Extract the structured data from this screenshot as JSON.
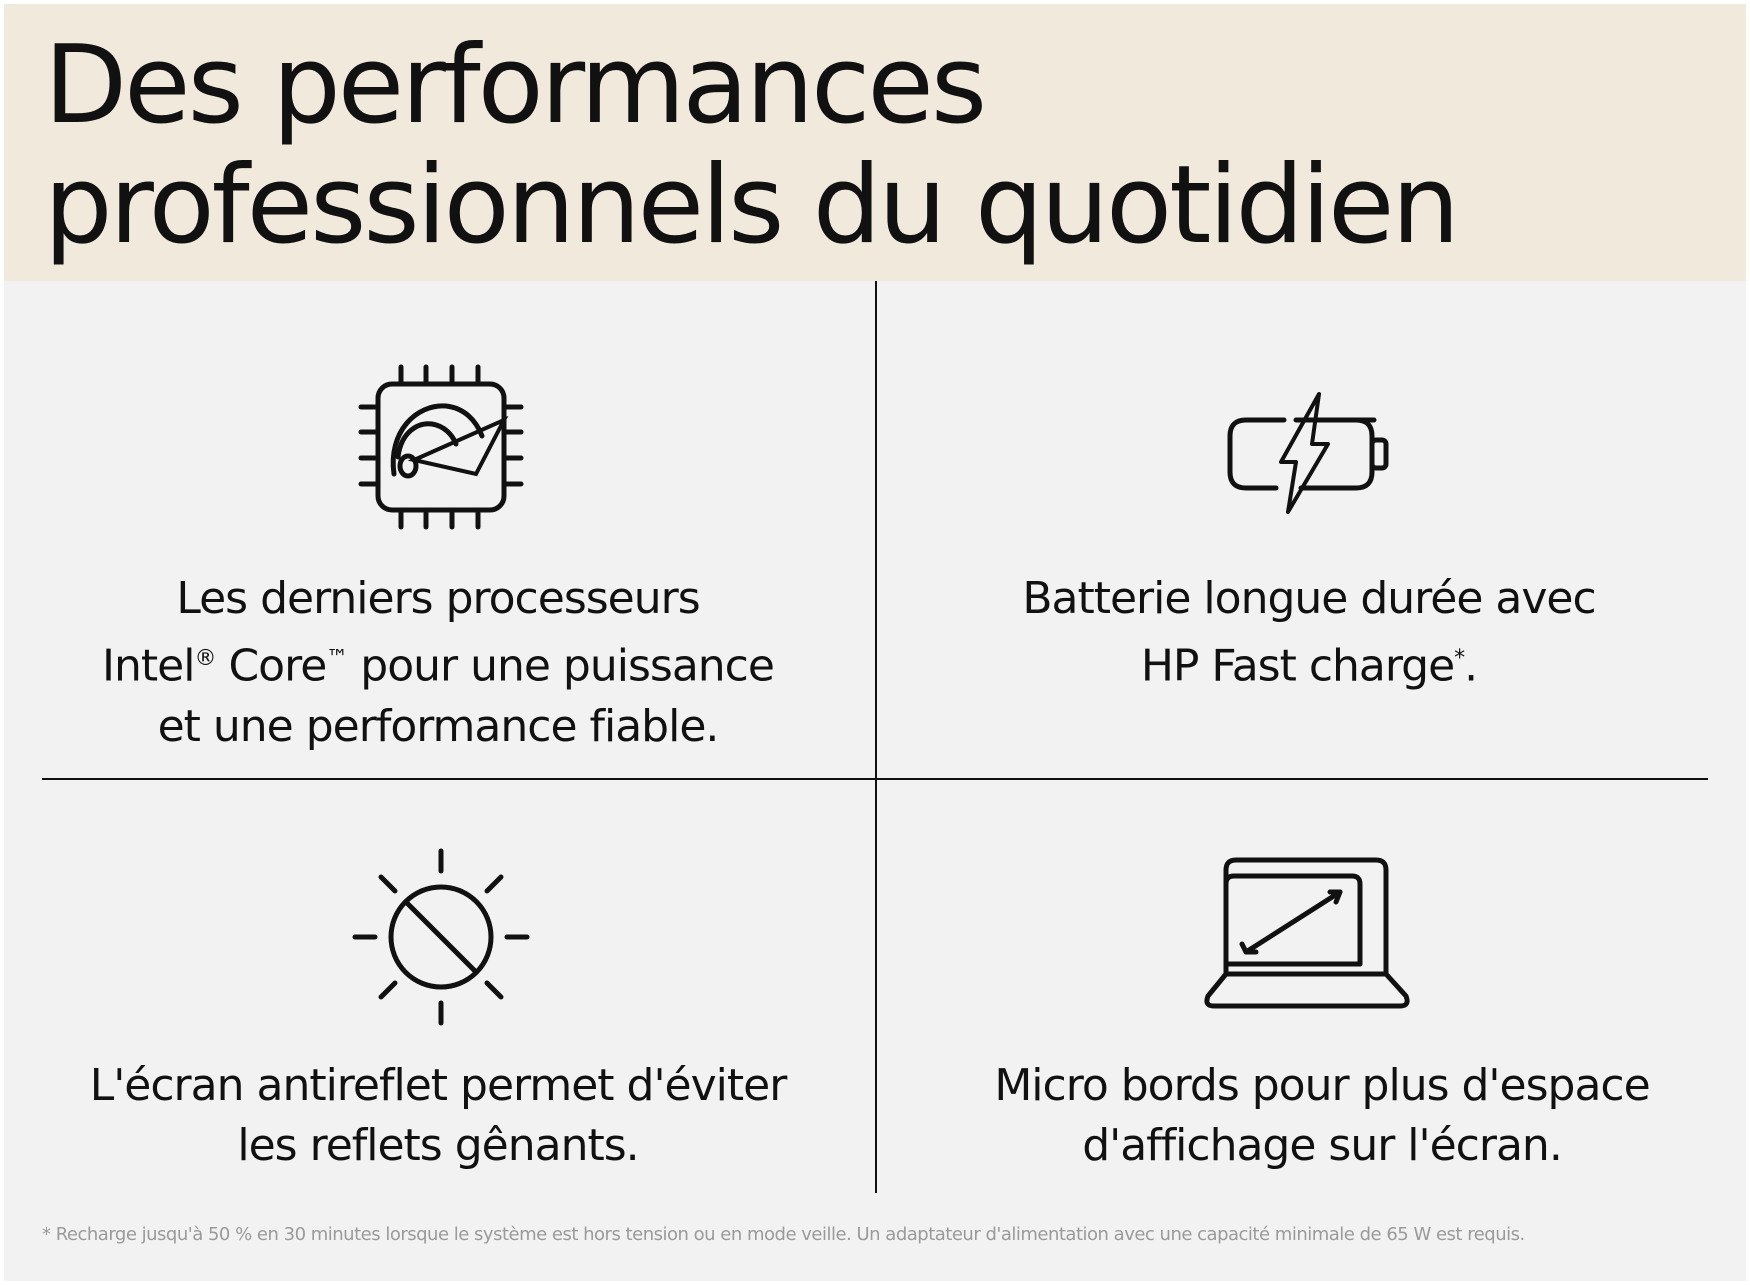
{
  "header": {
    "title_line1": "Des performances",
    "title_line2": "professionnels du quotidien",
    "background_color": "#f2e9dd"
  },
  "features": [
    {
      "icon": "processor-speedometer-icon",
      "line1": "Les derniers processeurs",
      "line2_a": "Intel",
      "line2_reg": "®",
      "line2_b": " Core",
      "line2_tm": "™",
      "line2_c": " pour une puissance",
      "line3": "et une performance fiable."
    },
    {
      "icon": "battery-fast-charge-icon",
      "line1": "Batterie longue durée avec",
      "line2": "HP Fast charge",
      "line2_mark": "*",
      "line2_end": "."
    },
    {
      "icon": "anti-glare-sun-icon",
      "line1": "L'écran antireflet permet d'éviter",
      "line2": "les reflets gênants."
    },
    {
      "icon": "laptop-micro-edge-icon",
      "line1": "Micro bords pour plus d'espace",
      "line2": "d'affichage sur l'écran."
    }
  ],
  "footnote": "* Recharge jusqu'à 50 % en 30 minutes lorsque le système est hors tension ou en mode veille. Un adaptateur d'alimentation avec une capacité minimale de 65 W est requis."
}
